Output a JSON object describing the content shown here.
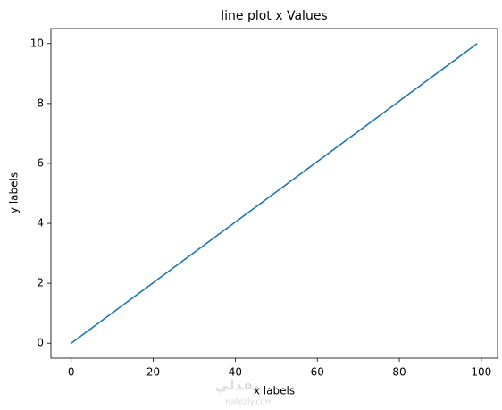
{
  "chart_data": {
    "type": "line",
    "title": "line plot x Values",
    "x_label": "x labels",
    "y_label": "y labels",
    "x": [
      0,
      99
    ],
    "values": [
      0,
      10
    ],
    "color": "#1f77b4",
    "xlim": [
      -4.95,
      103.95
    ],
    "xticks": [
      0,
      20,
      40,
      60,
      80,
      100
    ],
    "ylim": [
      -0.5,
      10.5
    ],
    "yticks": [
      0,
      2,
      4,
      6,
      8,
      10
    ],
    "watermark": "نفذلي",
    "watermark_url": "nafezly.com"
  }
}
